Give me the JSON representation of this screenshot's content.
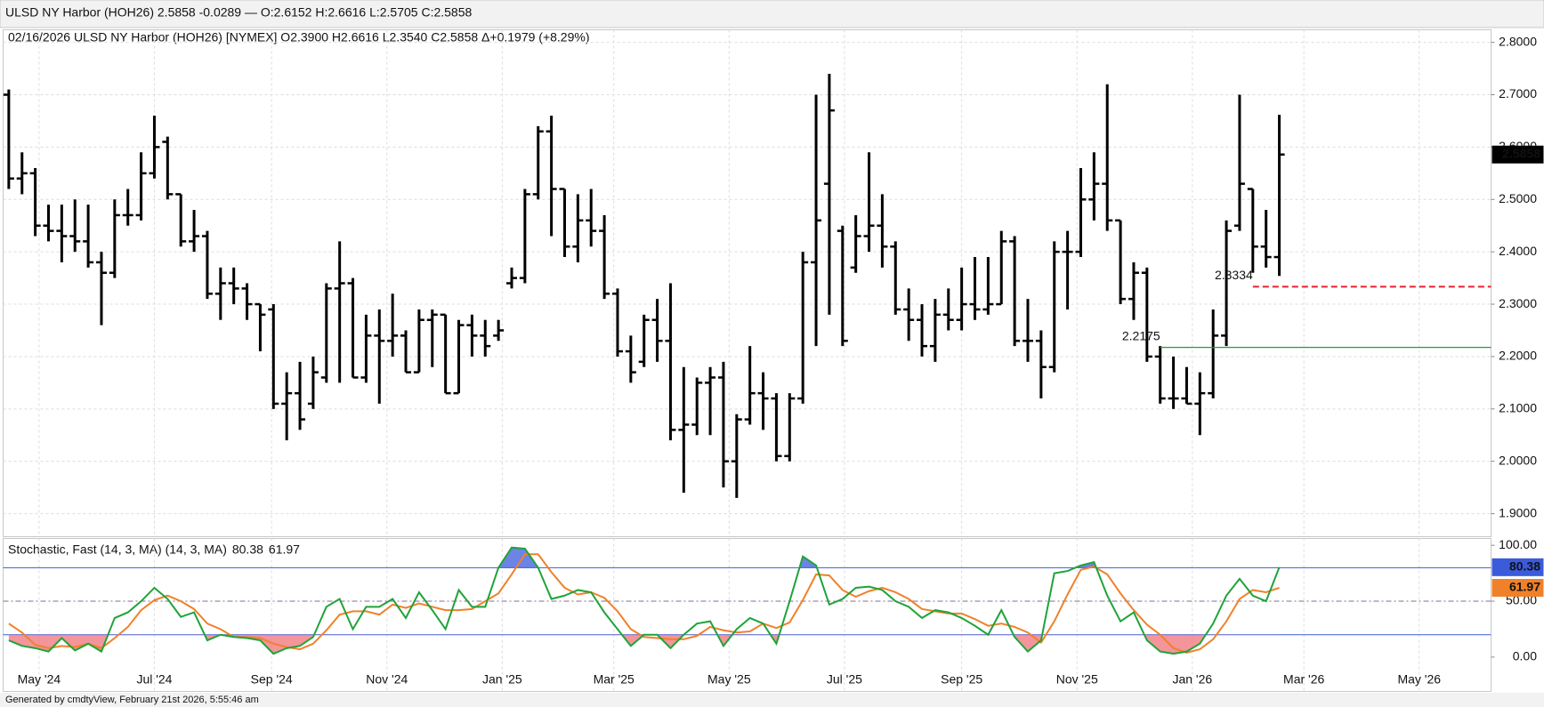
{
  "header": "ULSD NY Harbor (HOH26) 2.5858 -0.0289 — O:2.6152 H:2.6616 L:2.5705 C:2.5858",
  "footer": "Generated by cmdtyView, February 21st 2026, 5:55:46 am",
  "chart_data": [
    {
      "type": "ohlc",
      "legend": "02/16/2026 ULSD NY Harbor (HOH26) [NYMEX] O2.3900 H2.6616 L2.3540 C2.5858 Δ+0.1979 (+8.29%)",
      "x": [
        "2024-04-15",
        "2024-04-22",
        "2024-04-29",
        "2024-05-06",
        "2024-05-13",
        "2024-05-20",
        "2024-05-27",
        "2024-06-03",
        "2024-06-10",
        "2024-06-17",
        "2024-06-24",
        "2024-07-01",
        "2024-07-08",
        "2024-07-15",
        "2024-07-22",
        "2024-07-29",
        "2024-08-05",
        "2024-08-12",
        "2024-08-19",
        "2024-08-26",
        "2024-09-02",
        "2024-09-09",
        "2024-09-16",
        "2024-09-23",
        "2024-09-30",
        "2024-10-07",
        "2024-10-14",
        "2024-10-21",
        "2024-10-28",
        "2024-11-04",
        "2024-11-11",
        "2024-11-18",
        "2024-11-25",
        "2024-12-02",
        "2024-12-09",
        "2024-12-16",
        "2024-12-23",
        "2024-12-30",
        "2025-01-06",
        "2025-01-13",
        "2025-01-20",
        "2025-01-27",
        "2025-02-03",
        "2025-02-10",
        "2025-02-17",
        "2025-02-24",
        "2025-03-03",
        "2025-03-10",
        "2025-03-17",
        "2025-03-24",
        "2025-03-31",
        "2025-04-07",
        "2025-04-14",
        "2025-04-21",
        "2025-04-28",
        "2025-05-05",
        "2025-05-12",
        "2025-05-19",
        "2025-05-26",
        "2025-06-02",
        "2025-06-09",
        "2025-06-16",
        "2025-06-23",
        "2025-06-30",
        "2025-07-07",
        "2025-07-14",
        "2025-07-21",
        "2025-07-28",
        "2025-08-04",
        "2025-08-11",
        "2025-08-18",
        "2025-08-25",
        "2025-09-01",
        "2025-09-08",
        "2025-09-15",
        "2025-09-22",
        "2025-09-29",
        "2025-10-06",
        "2025-10-13",
        "2025-10-20",
        "2025-10-27",
        "2025-11-03",
        "2025-11-10",
        "2025-11-17",
        "2025-11-24",
        "2025-12-01",
        "2025-12-08",
        "2025-12-15",
        "2025-12-22",
        "2025-12-29",
        "2026-01-05",
        "2026-01-12",
        "2026-01-19",
        "2026-01-26",
        "2026-02-02",
        "2026-02-09",
        "2026-02-16"
      ],
      "open": [
        2.7,
        2.54,
        2.55,
        2.45,
        2.44,
        2.43,
        2.42,
        2.38,
        2.36,
        2.47,
        2.47,
        2.55,
        2.61,
        2.51,
        2.42,
        2.43,
        2.32,
        2.34,
        2.33,
        2.3,
        2.29,
        2.11,
        2.13,
        2.11,
        2.16,
        2.33,
        2.34,
        2.16,
        2.24,
        2.23,
        2.24,
        2.17,
        2.27,
        2.28,
        2.13,
        2.26,
        2.24,
        2.24,
        2.34,
        2.35,
        2.51,
        2.63,
        2.52,
        2.41,
        2.46,
        2.44,
        2.32,
        2.21,
        2.19,
        2.27,
        2.23,
        2.06,
        2.07,
        2.15,
        2.16,
        2.0,
        2.08,
        2.13,
        2.12,
        2.01,
        2.12,
        2.38,
        2.53,
        2.44,
        2.37,
        2.43,
        2.45,
        2.41,
        2.29,
        2.27,
        2.22,
        2.28,
        2.27,
        2.3,
        2.29,
        2.3,
        2.42,
        2.23,
        2.23,
        2.18,
        2.4,
        2.4,
        2.5,
        2.53,
        2.46,
        2.31,
        2.36,
        2.2,
        2.12,
        2.12,
        2.11,
        2.13,
        2.24,
        2.45,
        2.52,
        2.41,
        2.39
      ],
      "high": [
        2.71,
        2.59,
        2.56,
        2.49,
        2.49,
        2.5,
        2.49,
        2.4,
        2.5,
        2.52,
        2.59,
        2.66,
        2.62,
        2.51,
        2.48,
        2.44,
        2.37,
        2.37,
        2.34,
        2.3,
        2.3,
        2.17,
        2.19,
        2.2,
        2.34,
        2.42,
        2.35,
        2.28,
        2.29,
        2.32,
        2.25,
        2.29,
        2.29,
        2.28,
        2.27,
        2.28,
        2.27,
        2.27,
        2.37,
        2.52,
        2.64,
        2.66,
        2.52,
        2.51,
        2.52,
        2.47,
        2.33,
        2.24,
        2.28,
        2.31,
        2.34,
        2.18,
        2.16,
        2.18,
        2.19,
        2.09,
        2.22,
        2.17,
        2.13,
        2.13,
        2.4,
        2.7,
        2.74,
        2.45,
        2.47,
        2.59,
        2.51,
        2.42,
        2.33,
        2.3,
        2.31,
        2.33,
        2.37,
        2.39,
        2.39,
        2.44,
        2.43,
        2.31,
        2.25,
        2.42,
        2.44,
        2.56,
        2.59,
        2.72,
        2.46,
        2.38,
        2.37,
        2.22,
        2.2,
        2.18,
        2.17,
        2.29,
        2.46,
        2.7,
        2.52,
        2.48,
        2.6616
      ],
      "low": [
        2.52,
        2.51,
        2.43,
        2.42,
        2.38,
        2.4,
        2.37,
        2.26,
        2.35,
        2.45,
        2.46,
        2.54,
        2.5,
        2.41,
        2.4,
        2.31,
        2.27,
        2.3,
        2.27,
        2.21,
        2.1,
        2.04,
        2.06,
        2.1,
        2.15,
        2.15,
        2.16,
        2.15,
        2.11,
        2.2,
        2.17,
        2.17,
        2.18,
        2.13,
        2.13,
        2.2,
        2.2,
        2.23,
        2.33,
        2.34,
        2.5,
        2.43,
        2.39,
        2.38,
        2.41,
        2.31,
        2.2,
        2.15,
        2.18,
        2.19,
        2.04,
        1.94,
        2.05,
        2.05,
        1.95,
        1.93,
        2.07,
        2.06,
        2.0,
        2.0,
        2.11,
        2.22,
        2.28,
        2.22,
        2.36,
        2.4,
        2.37,
        2.28,
        2.23,
        2.2,
        2.19,
        2.25,
        2.25,
        2.27,
        2.28,
        2.3,
        2.22,
        2.19,
        2.12,
        2.17,
        2.29,
        2.39,
        2.46,
        2.44,
        2.3,
        2.27,
        2.19,
        2.11,
        2.1,
        2.11,
        2.05,
        2.12,
        2.22,
        2.44,
        2.36,
        2.37,
        2.354
      ],
      "close": [
        2.54,
        2.55,
        2.45,
        2.44,
        2.43,
        2.42,
        2.38,
        2.36,
        2.47,
        2.47,
        2.55,
        2.6,
        2.51,
        2.42,
        2.43,
        2.32,
        2.34,
        2.33,
        2.3,
        2.28,
        2.11,
        2.13,
        2.08,
        2.17,
        2.33,
        2.34,
        2.16,
        2.24,
        2.23,
        2.24,
        2.17,
        2.27,
        2.28,
        2.13,
        2.26,
        2.24,
        2.22,
        2.25,
        2.35,
        2.51,
        2.63,
        2.52,
        2.41,
        2.46,
        2.44,
        2.32,
        2.21,
        2.17,
        2.27,
        2.23,
        2.06,
        2.07,
        2.15,
        2.16,
        2.0,
        2.08,
        2.13,
        2.12,
        2.01,
        2.12,
        2.38,
        2.46,
        2.67,
        2.23,
        2.43,
        2.45,
        2.41,
        2.29,
        2.27,
        2.22,
        2.28,
        2.27,
        2.3,
        2.29,
        2.3,
        2.42,
        2.23,
        2.23,
        2.18,
        2.4,
        2.4,
        2.5,
        2.53,
        2.46,
        2.31,
        2.36,
        2.2,
        2.12,
        2.12,
        2.11,
        2.13,
        2.24,
        2.44,
        2.53,
        2.41,
        2.39,
        2.5858
      ],
      "color": "#000000",
      "xlim": [
        "2024-04-12",
        "2026-06-08"
      ],
      "xticks": [
        {
          "value": "2024-05-01",
          "label": "May '24"
        },
        {
          "value": "2024-07-01",
          "label": "Jul '24"
        },
        {
          "value": "2024-09-01",
          "label": "Sep '24"
        },
        {
          "value": "2024-11-01",
          "label": "Nov '24"
        },
        {
          "value": "2025-01-01",
          "label": "Jan '25"
        },
        {
          "value": "2025-03-01",
          "label": "Mar '25"
        },
        {
          "value": "2025-05-01",
          "label": "May '25"
        },
        {
          "value": "2025-07-01",
          "label": "Jul '25"
        },
        {
          "value": "2025-09-01",
          "label": "Sep '25"
        },
        {
          "value": "2025-11-01",
          "label": "Nov '25"
        },
        {
          "value": "2026-01-01",
          "label": "Jan '26"
        },
        {
          "value": "2026-03-01",
          "label": "Mar '26"
        },
        {
          "value": "2026-05-01",
          "label": "May '26"
        }
      ],
      "ylim": [
        1.856,
        2.824
      ],
      "yticks": [
        {
          "value": 1.9,
          "label": "1.9000"
        },
        {
          "value": 2.0,
          "label": "2.0000"
        },
        {
          "value": 2.1,
          "label": "2.1000"
        },
        {
          "value": 2.2,
          "label": "2.2000"
        },
        {
          "value": 2.3,
          "label": "2.3000"
        },
        {
          "value": 2.4,
          "label": "2.4000"
        },
        {
          "value": 2.5,
          "label": "2.5000"
        },
        {
          "value": 2.6,
          "label": "2.6000"
        },
        {
          "value": 2.7,
          "label": "2.7000"
        },
        {
          "value": 2.8,
          "label": "2.8000"
        }
      ],
      "grid": true,
      "levels": [
        {
          "value": 2.3334,
          "color": "#e8202c",
          "style": "dashed",
          "from": "2026-02-02"
        },
        {
          "value": 2.2175,
          "color": "#2a9a2a",
          "style": "solid",
          "from": "2025-12-15"
        }
      ]
    },
    {
      "type": "line",
      "title": "Stochastic, Fast (14, 3, MA) (14, 3, MA)",
      "series": [
        {
          "color": "#1fa33a",
          "values": [
            15,
            10,
            8,
            5,
            17,
            6,
            12,
            5,
            35,
            40,
            50,
            62,
            52,
            36,
            40,
            15,
            20,
            18,
            17,
            15,
            3,
            8,
            10,
            18,
            45,
            52,
            25,
            45,
            45,
            52,
            35,
            58,
            42,
            25,
            60,
            45,
            45,
            80,
            98,
            97,
            80,
            52,
            55,
            60,
            58,
            40,
            25,
            10,
            20,
            20,
            8,
            20,
            30,
            32,
            10,
            25,
            35,
            30,
            12,
            50,
            90,
            82,
            47,
            52,
            62,
            63,
            60,
            50,
            45,
            35,
            42,
            40,
            35,
            28,
            20,
            42,
            18,
            5,
            15,
            75,
            77,
            82,
            85,
            55,
            32,
            40,
            15,
            5,
            3,
            5,
            12,
            30,
            55,
            70,
            55,
            50,
            80.38
          ]
        },
        {
          "color": "#f0812a",
          "values": [
            30,
            22,
            11,
            8,
            10,
            9,
            12,
            8,
            17,
            27,
            42,
            51,
            55,
            50,
            43,
            30,
            25,
            18,
            18,
            17,
            12,
            9,
            7,
            12,
            24,
            38,
            41,
            41,
            38,
            47,
            44,
            48,
            45,
            42,
            42,
            43,
            50,
            57,
            74,
            92,
            92,
            76,
            62,
            56,
            58,
            53,
            41,
            25,
            18,
            17,
            16,
            16,
            19,
            27,
            24,
            22,
            23,
            30,
            26,
            31,
            51,
            74,
            73,
            60,
            54,
            59,
            62,
            58,
            52,
            43,
            41,
            39,
            39,
            34,
            28,
            30,
            27,
            22,
            13,
            32,
            56,
            78,
            81,
            74,
            57,
            42,
            29,
            20,
            8,
            4,
            7,
            16,
            32,
            52,
            60,
            58,
            61.97
          ]
        }
      ],
      "ylim": [
        -30.7,
        106.1
      ],
      "yticks": [
        {
          "value": 0,
          "label": "0.00"
        },
        {
          "value": 50,
          "label": "50.00"
        },
        {
          "value": 100,
          "label": "100.00"
        }
      ],
      "overbought": 80,
      "oversold": 20,
      "midline": 50,
      "overbought_color": "#3b5bdb",
      "oversold_color": "#f0707a"
    }
  ]
}
